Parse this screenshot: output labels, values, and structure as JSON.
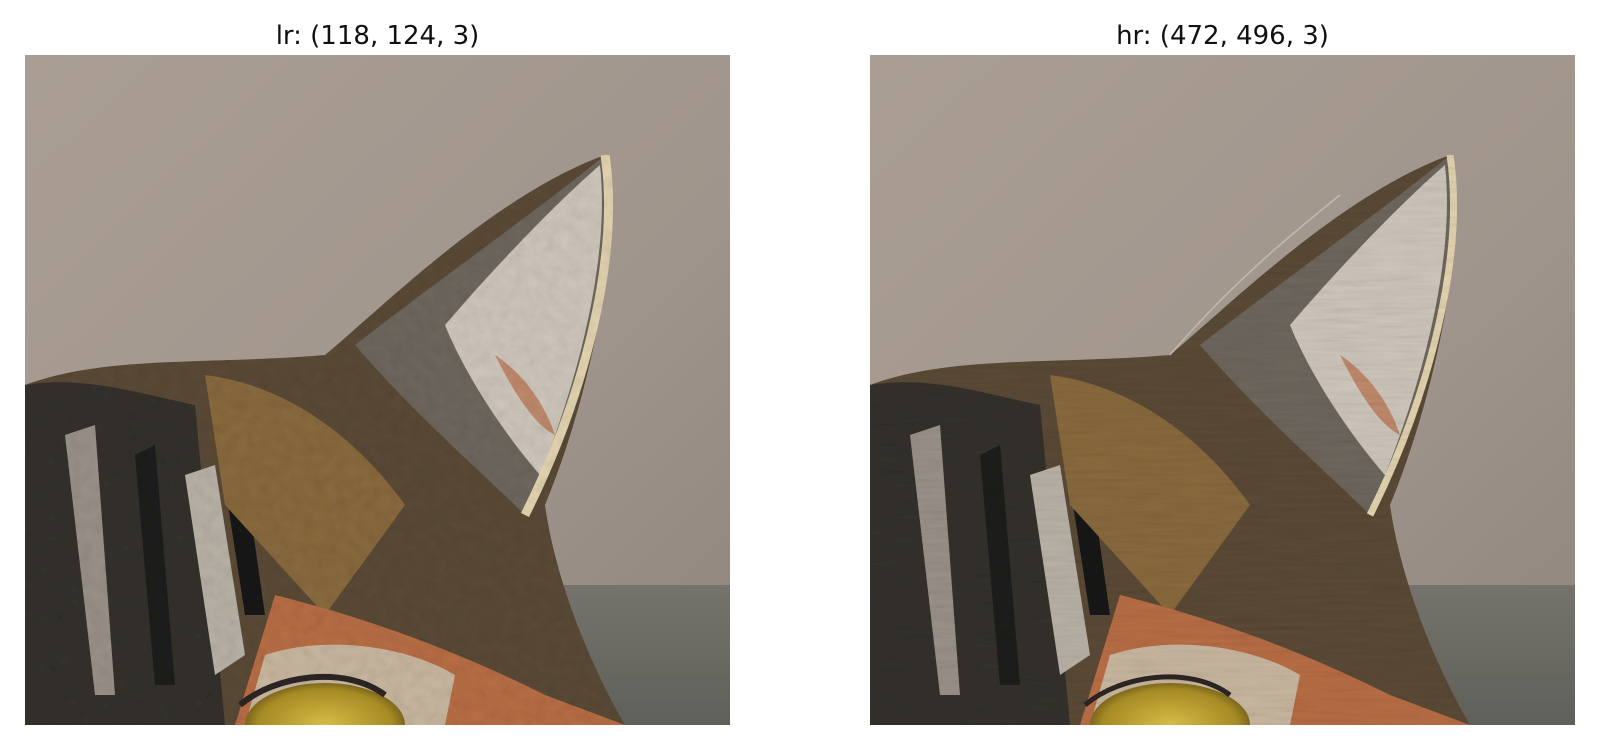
{
  "panels": [
    {
      "title": "lr: (118, 124, 3)",
      "image": "tabby-cat-ear-close-up-low-resolution"
    },
    {
      "title": "hr: (472, 496, 3)",
      "image": "tabby-cat-ear-close-up-high-resolution"
    }
  ],
  "colors": {
    "background_wall": "#a59a90",
    "fur_dark": "#2e2c2a",
    "fur_tan": "#8a6a3e",
    "fur_orange": "#b86e45",
    "ear_inner": "#d9d2c8",
    "ear_rim": "#e3d4b0",
    "eye": "#b59a2a"
  }
}
